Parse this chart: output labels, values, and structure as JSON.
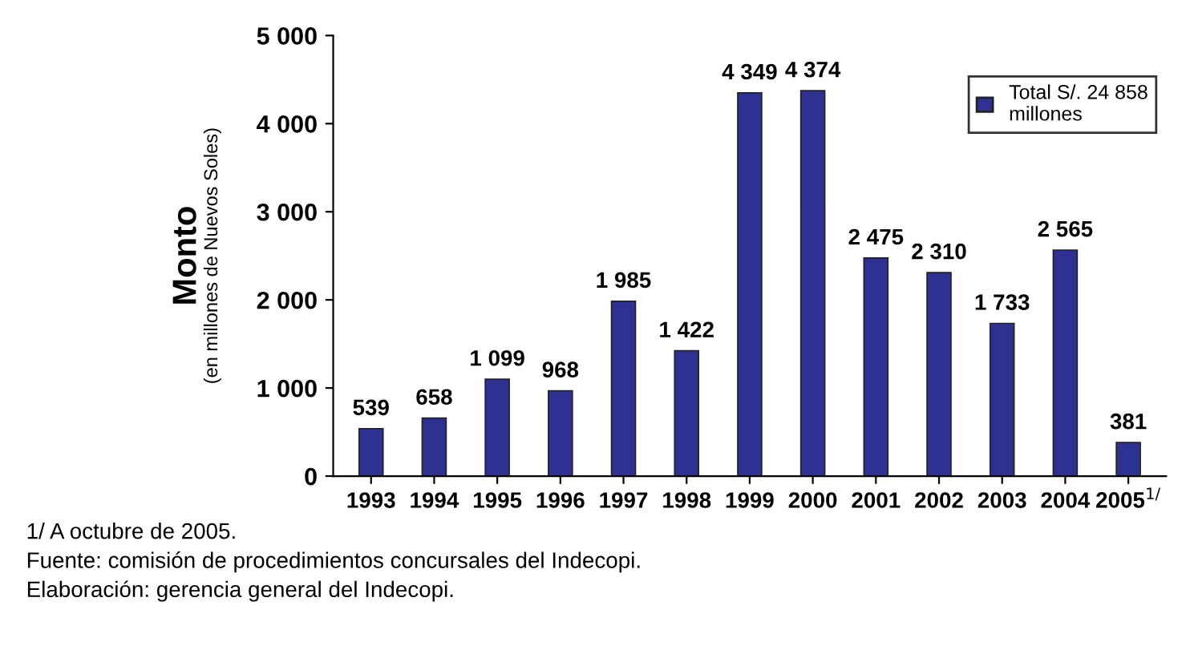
{
  "chart_data": {
    "type": "bar",
    "ylabel": "Monto",
    "subtitle": "(en millones de Nuevos Soles)",
    "categories": [
      "1993",
      "1994",
      "1995",
      "1996",
      "1997",
      "1998",
      "1999",
      "2000",
      "2001",
      "2002",
      "2003",
      "2004",
      "2005$^{1/}$"
    ],
    "series": [
      {
        "name": "Total S/. 24 858\nmillones",
        "color": "#2e3192",
        "values": [
          539,
          658,
          1099,
          968,
          1985,
          1422,
          4349,
          4374,
          2475,
          2310,
          1733,
          2565,
          381
        ],
        "value_labels": [
          "539",
          "658",
          "1 099",
          "968",
          "1 985",
          "1 422",
          "4 349",
          "4 374",
          "2 475",
          "2 310",
          "1 733",
          "2 565",
          "381"
        ]
      }
    ],
    "ylim": [
      0,
      5000
    ],
    "yticks": [
      0,
      {
        "value": 1000,
        "label": "1 000"
      },
      {
        "value": 2000,
        "label": "2 000"
      },
      {
        "value": 3000,
        "label": "3 000"
      },
      {
        "value": 4000,
        "label": "4 000"
      },
      {
        "value": 5000,
        "label": "5 000"
      }
    ],
    "legend": "top right",
    "grid": false,
    "annotations": [
      "1/ A octubre de 2005.",
      "Fuente: comisión de procedimientos concursales del Indecopi.",
      "Elaboración: gerencia general del Indecopi."
    ]
  }
}
